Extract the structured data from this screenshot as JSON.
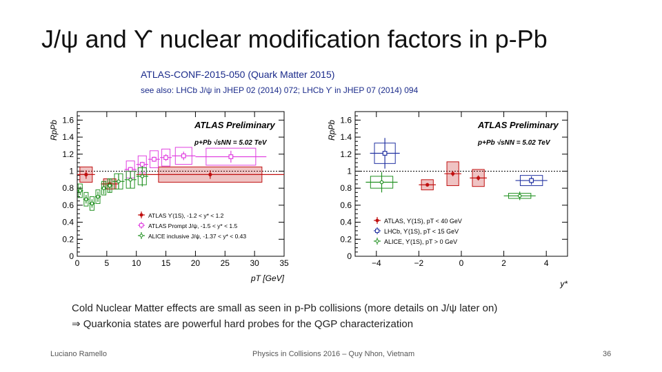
{
  "slide": {
    "title": "J/ψ and ϒ nuclear modification factors in p-Pb",
    "reference": "ATLAS-CONF-2015-050 (Quark Matter 2015)",
    "see_also": "see also: LHCb J/ψ in JHEP 02 (2014) 072; LHCb ϒ in JHEP 07 (2014) 094",
    "note_line1": "Cold Nuclear Matter effects are small as seen in p-Pb collisions (more details on J/ψ later on)",
    "note_line2": "⇒ Quarkonia states are powerful hard probes for the QGP characterization",
    "footer_author": "Luciano Ramello",
    "footer_conference": "Physics in Collisions 2016 – Quy Nhon, Vietnam",
    "page_number": "36"
  },
  "chart_data": [
    {
      "type": "scatter",
      "title": "ATLAS Preliminary",
      "subtitle": "p+Pb √sNN = 5.02 TeV",
      "xlabel": "pT [GeV]",
      "ylabel": "RpPb",
      "xlim": [
        0,
        35
      ],
      "ylim": [
        0,
        1.7
      ],
      "xticks": [
        0,
        5,
        10,
        15,
        20,
        25,
        30,
        35
      ],
      "xtick_labels": [
        "0",
        "5",
        "10",
        "15",
        "20",
        "25",
        "30",
        "35"
      ],
      "yticks": [
        0,
        0.2,
        0.4,
        0.6,
        0.8,
        1,
        1.2,
        1.4,
        1.6
      ],
      "ytick_labels": [
        "0",
        "0.2",
        "0.4",
        "0.6",
        "0.8",
        "1",
        "1.2",
        "1.4",
        "1.6"
      ],
      "reference_line": 1,
      "legend_position": "bottom-center",
      "series": [
        {
          "name": "ATLAS ϒ(1S), -1.2 < y* < 1.2",
          "color": "#c01010",
          "marker": "filled-circle",
          "points": [
            {
              "x": 1.5,
              "y": 0.96,
              "xerr": 1.5,
              "yerr": 0.05,
              "sys": 0.09
            },
            {
              "x": 5.5,
              "y": 0.85,
              "xerr": 1.5,
              "yerr": 0.04,
              "sys": 0.06
            },
            {
              "x": 22.5,
              "y": 0.96,
              "xerr": 12.5,
              "yerr": 0.05,
              "sys": 0.09
            }
          ]
        },
        {
          "name": "ATLAS Prompt J/ψ, -1.5 < y* < 1.5",
          "color": "#e040e0",
          "marker": "open-square",
          "points": [
            {
              "x": 9,
              "y": 1.02,
              "xerr": 1.0,
              "yerr": 0.03,
              "sys": 0.1
            },
            {
              "x": 11,
              "y": 1.08,
              "xerr": 1.0,
              "yerr": 0.03,
              "sys": 0.1
            },
            {
              "x": 13,
              "y": 1.14,
              "xerr": 1.0,
              "yerr": 0.03,
              "sys": 0.1
            },
            {
              "x": 15,
              "y": 1.16,
              "xerr": 1.0,
              "yerr": 0.04,
              "sys": 0.1
            },
            {
              "x": 18,
              "y": 1.18,
              "xerr": 2.0,
              "yerr": 0.05,
              "sys": 0.1
            },
            {
              "x": 26,
              "y": 1.17,
              "xerr": 6.0,
              "yerr": 0.07,
              "sys": 0.1
            }
          ]
        },
        {
          "name": "ALICE inclusive J/ψ, -1.37 < y* < 0.43",
          "color": "#209020",
          "marker": "cross",
          "points": [
            {
              "x": 0.5,
              "y": 0.77,
              "xerr": 0.5,
              "yerr": 0.05,
              "sys": 0.08
            },
            {
              "x": 1.5,
              "y": 0.67,
              "xerr": 0.5,
              "yerr": 0.05,
              "sys": 0.08
            },
            {
              "x": 2.5,
              "y": 0.62,
              "xerr": 0.5,
              "yerr": 0.05,
              "sys": 0.08
            },
            {
              "x": 3.5,
              "y": 0.7,
              "xerr": 0.5,
              "yerr": 0.06,
              "sys": 0.08
            },
            {
              "x": 4.5,
              "y": 0.8,
              "xerr": 0.5,
              "yerr": 0.07,
              "sys": 0.08
            },
            {
              "x": 5.5,
              "y": 0.83,
              "xerr": 0.5,
              "yerr": 0.08,
              "sys": 0.08
            },
            {
              "x": 7,
              "y": 0.88,
              "xerr": 1.0,
              "yerr": 0.09,
              "sys": 0.09
            },
            {
              "x": 9,
              "y": 0.9,
              "xerr": 1.0,
              "yerr": 0.1,
              "sys": 0.1
            },
            {
              "x": 11,
              "y": 0.94,
              "xerr": 1.0,
              "yerr": 0.12,
              "sys": 0.1
            }
          ]
        }
      ]
    },
    {
      "type": "scatter",
      "title": "ATLAS Preliminary",
      "subtitle": "p+Pb √sNN = 5.02 TeV",
      "xlabel": "y*",
      "ylabel": "RpPb",
      "xlim": [
        -5,
        5
      ],
      "ylim": [
        0,
        1.7
      ],
      "xticks": [
        -4,
        -2,
        0,
        2,
        4
      ],
      "xtick_labels": [
        "−4",
        "−2",
        "0",
        "2",
        "4"
      ],
      "yticks": [
        0,
        0.2,
        0.4,
        0.6,
        0.8,
        1,
        1.2,
        1.4,
        1.6
      ],
      "ytick_labels": [
        "0",
        "0.2",
        "0.4",
        "0.6",
        "0.8",
        "1",
        "1.2",
        "1.4",
        "1.6"
      ],
      "reference_line": 1,
      "legend_position": "bottom-left",
      "series": [
        {
          "name": "ATLAS, ϒ(1S), pT < 40 GeV",
          "color": "#c01010",
          "marker": "filled-circle",
          "points": [
            {
              "x": -1.6,
              "y": 0.84,
              "xerr": 0.4,
              "yerr": 0.02,
              "sys": 0.06
            },
            {
              "x": -0.4,
              "y": 0.97,
              "xerr": 0.4,
              "yerr": 0.03,
              "sys": 0.14
            },
            {
              "x": 0.8,
              "y": 0.92,
              "xerr": 0.4,
              "yerr": 0.03,
              "sys": 0.1
            }
          ]
        },
        {
          "name": "LHCb, ϒ(1S), pT < 15 GeV",
          "color": "#2030a0",
          "marker": "open-square",
          "points": [
            {
              "x": -3.6,
              "y": 1.21,
              "xerr": 0.7,
              "yerr": 0.18,
              "sys": 0.12
            },
            {
              "x": 3.3,
              "y": 0.89,
              "xerr": 0.75,
              "yerr": 0.05,
              "sys": 0.06
            }
          ]
        },
        {
          "name": "ALICE, ϒ(1S), pT > 0 GeV",
          "color": "#209020",
          "marker": "cross",
          "points": [
            {
              "x": -3.75,
              "y": 0.87,
              "xerr": 0.75,
              "yerr": 0.12,
              "sys": 0.07
            },
            {
              "x": 2.75,
              "y": 0.71,
              "xerr": 0.75,
              "yerr": 0.05,
              "sys": 0.03
            }
          ]
        }
      ]
    }
  ]
}
